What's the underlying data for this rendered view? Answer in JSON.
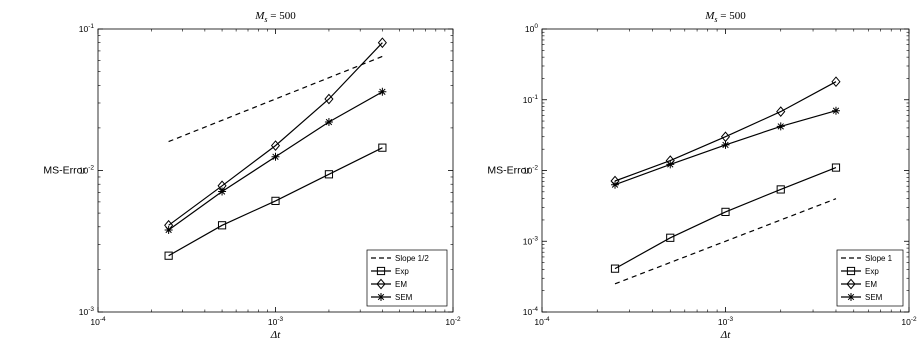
{
  "chart_data": [
    {
      "type": "line",
      "title": "M_s = 500",
      "xlabel": "Δt",
      "ylabel": "MS-Error",
      "xscale": "log",
      "yscale": "log",
      "xlim": [
        0.0001,
        0.01
      ],
      "ylim": [
        0.001,
        0.1
      ],
      "x_ticks": [
        0.0001,
        0.001,
        0.01
      ],
      "y_ticks": [
        0.001,
        0.01,
        0.1
      ],
      "legend_location": "bottom-right",
      "grid": false,
      "series": [
        {
          "name": "Slope 1/2",
          "style": "dashed",
          "marker": "none",
          "x": [
            0.00025,
            0.004
          ],
          "y": [
            0.016,
            0.064
          ]
        },
        {
          "name": "Exp",
          "style": "solid",
          "marker": "square",
          "x": [
            0.00025,
            0.0005,
            0.001,
            0.002,
            0.004
          ],
          "y": [
            0.0025,
            0.0041,
            0.0061,
            0.0094,
            0.0145
          ]
        },
        {
          "name": "EM",
          "style": "solid",
          "marker": "diamond",
          "x": [
            0.00025,
            0.0005,
            0.001,
            0.002,
            0.004
          ],
          "y": [
            0.0041,
            0.0078,
            0.015,
            0.032,
            0.08
          ]
        },
        {
          "name": "SEM",
          "style": "solid",
          "marker": "asterisk",
          "x": [
            0.00025,
            0.0005,
            0.001,
            0.002,
            0.004
          ],
          "y": [
            0.0038,
            0.0071,
            0.0125,
            0.022,
            0.036
          ]
        }
      ]
    },
    {
      "type": "line",
      "title": "M_s = 500",
      "xlabel": "Δt",
      "ylabel": "MS-Error",
      "xscale": "log",
      "yscale": "log",
      "xlim": [
        0.0001,
        0.01
      ],
      "ylim": [
        0.0001,
        1
      ],
      "x_ticks": [
        0.0001,
        0.001,
        0.01
      ],
      "y_ticks": [
        0.0001,
        0.001,
        0.01,
        0.1,
        1
      ],
      "legend_location": "bottom-right",
      "grid": false,
      "series": [
        {
          "name": "Slope 1",
          "style": "dashed",
          "marker": "none",
          "x": [
            0.00025,
            0.004
          ],
          "y": [
            0.00025,
            0.004
          ]
        },
        {
          "name": "Exp",
          "style": "solid",
          "marker": "square",
          "x": [
            0.00025,
            0.0005,
            0.001,
            0.002,
            0.004
          ],
          "y": [
            0.00041,
            0.00112,
            0.0026,
            0.0054,
            0.011
          ]
        },
        {
          "name": "EM",
          "style": "solid",
          "marker": "diamond",
          "x": [
            0.00025,
            0.0005,
            0.001,
            0.002,
            0.004
          ],
          "y": [
            0.0071,
            0.0138,
            0.03,
            0.068,
            0.18
          ]
        },
        {
          "name": "SEM",
          "style": "solid",
          "marker": "asterisk",
          "x": [
            0.00025,
            0.0005,
            0.001,
            0.002,
            0.004
          ],
          "y": [
            0.0063,
            0.0122,
            0.023,
            0.042,
            0.07
          ]
        }
      ]
    }
  ]
}
